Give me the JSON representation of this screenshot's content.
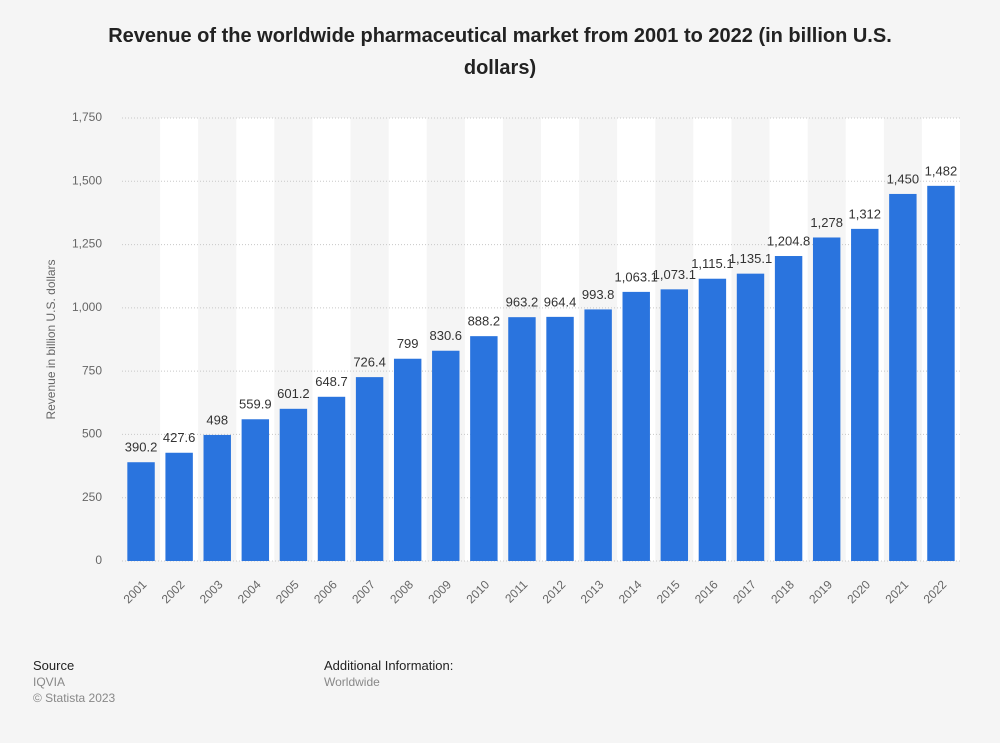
{
  "chart_data": {
    "type": "bar",
    "title": "Revenue of the worldwide pharmaceutical market from 2001 to 2022 (in billion U.S. dollars)",
    "y_label": "Revenue in billion U.S. dollars",
    "categories": [
      "2001",
      "2002",
      "2003",
      "2004",
      "2005",
      "2006",
      "2007",
      "2008",
      "2009",
      "2010",
      "2011",
      "2012",
      "2013",
      "2014",
      "2015",
      "2016",
      "2017",
      "2018",
      "2019",
      "2020",
      "2021",
      "2022"
    ],
    "values": [
      390.2,
      427.6,
      498,
      559.9,
      601.2,
      648.7,
      726.4,
      799,
      830.6,
      888.2,
      963.2,
      964.4,
      993.8,
      1063.1,
      1073.1,
      1115.1,
      1135.1,
      1204.8,
      1278,
      1312,
      1450,
      1482
    ],
    "value_labels": [
      "390.2",
      "427.6",
      "498",
      "559.9",
      "601.2",
      "648.7",
      "726.4",
      "799",
      "830.6",
      "888.2",
      "963.2",
      "964.4",
      "993.8",
      "1,063.1",
      "1,073.1",
      "1,115.1",
      "1,135.1",
      "1,204.8",
      "1,278",
      "1,312",
      "1,450",
      "1,482"
    ],
    "color": "#2a74de",
    "ylim": [
      0,
      1750
    ],
    "yticks": [
      0,
      250,
      500,
      750,
      {
        "value": 1000,
        "label": "1,000"
      },
      {
        "value": 1250,
        "label": "1,250"
      },
      {
        "value": 1500,
        "label": "1,500"
      },
      {
        "value": 1750,
        "label": "1,750"
      }
    ],
    "grid": true
  },
  "footer": {
    "source_title": "Source",
    "source": "IQVIA",
    "copyright": "© Statista 2023",
    "info_title": "Additional Information:",
    "info": "Worldwide"
  }
}
